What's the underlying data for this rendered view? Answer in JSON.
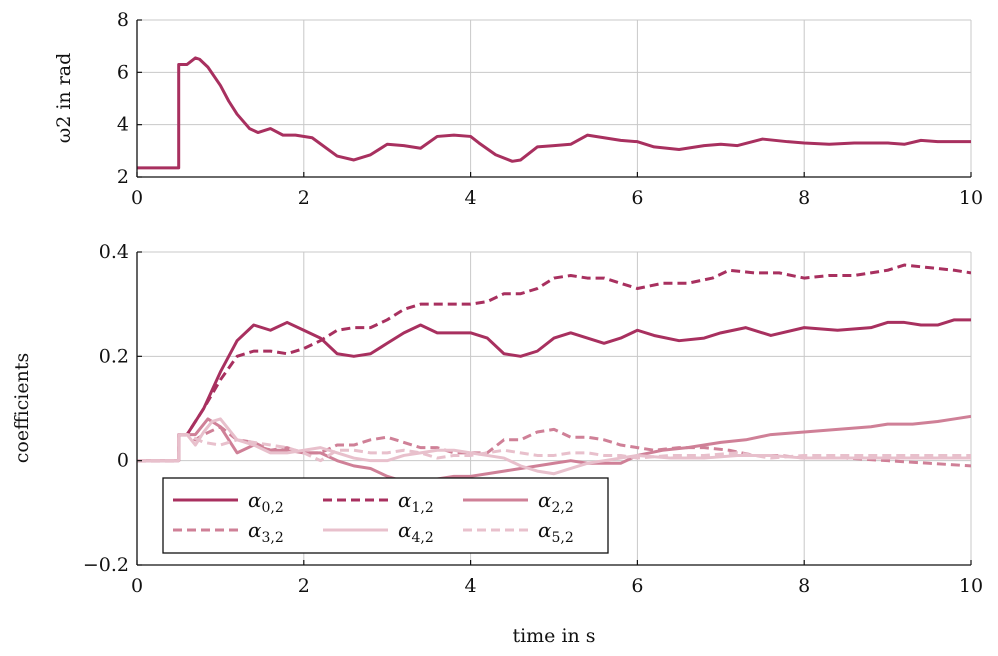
{
  "chart_data": [
    {
      "type": "line",
      "ylabel": "ω2 in rad",
      "xlabel": "",
      "xlim": [
        0,
        10
      ],
      "ylim": [
        2,
        8
      ],
      "xticks": [
        0,
        2,
        4,
        6,
        8,
        10
      ],
      "yticks": [
        2,
        4,
        6,
        8
      ],
      "xtick_labels": [
        "0",
        "2",
        "4",
        "6",
        "8",
        "10"
      ],
      "ytick_labels": [
        "2",
        "4",
        "6",
        "8"
      ],
      "grid": true,
      "legend": null,
      "series": [
        {
          "color": "#a8305f",
          "dash": "solid",
          "x": [
            0,
            0.5,
            0.5,
            0.52,
            0.6,
            0.7,
            0.75,
            0.85,
            1.0,
            1.1,
            1.2,
            1.35,
            1.45,
            1.6,
            1.75,
            1.9,
            2.1,
            2.4,
            2.6,
            2.8,
            3.0,
            3.2,
            3.4,
            3.6,
            3.8,
            4.0,
            4.1,
            4.3,
            4.5,
            4.6,
            4.8,
            5.0,
            5.2,
            5.4,
            5.6,
            5.8,
            6.0,
            6.2,
            6.5,
            6.8,
            7.0,
            7.2,
            7.5,
            7.8,
            8.0,
            8.3,
            8.6,
            9.0,
            9.2,
            9.4,
            9.6,
            9.8,
            10.0
          ],
          "y": [
            2.35,
            2.35,
            6.3,
            6.3,
            6.3,
            6.55,
            6.5,
            6.2,
            5.5,
            4.9,
            4.4,
            3.85,
            3.7,
            3.85,
            3.6,
            3.6,
            3.5,
            2.8,
            2.65,
            2.85,
            3.25,
            3.2,
            3.1,
            3.55,
            3.6,
            3.55,
            3.3,
            2.85,
            2.6,
            2.65,
            3.15,
            3.2,
            3.25,
            3.6,
            3.5,
            3.4,
            3.35,
            3.15,
            3.05,
            3.2,
            3.25,
            3.2,
            3.45,
            3.35,
            3.3,
            3.25,
            3.3,
            3.3,
            3.25,
            3.4,
            3.35,
            3.35,
            3.35
          ]
        }
      ]
    },
    {
      "type": "line",
      "ylabel": "coefficients",
      "xlabel": "time in s",
      "xlim": [
        0,
        10
      ],
      "ylim": [
        -0.2,
        0.4
      ],
      "xticks": [
        0,
        2,
        4,
        6,
        8,
        10
      ],
      "yticks": [
        -0.2,
        0,
        0.2,
        0.4
      ],
      "xtick_labels": [
        "0",
        "2",
        "4",
        "6",
        "8",
        "10"
      ],
      "ytick_labels": [
        "−0.2",
        "0",
        "0.2",
        "0.4"
      ],
      "grid": true,
      "legend": "bottom-left",
      "series": [
        {
          "name": "α0,2",
          "base": "α",
          "sub": "0,2",
          "color": "#a8305f",
          "dash": "solid",
          "x": [
            0,
            0.5,
            0.5,
            0.6,
            0.8,
            1.0,
            1.2,
            1.4,
            1.6,
            1.8,
            2.0,
            2.2,
            2.4,
            2.6,
            2.8,
            3.0,
            3.2,
            3.4,
            3.6,
            3.8,
            4.0,
            4.2,
            4.4,
            4.6,
            4.8,
            5.0,
            5.2,
            5.4,
            5.6,
            5.8,
            6.0,
            6.2,
            6.5,
            6.8,
            7.0,
            7.3,
            7.6,
            8.0,
            8.4,
            8.8,
            9.0,
            9.2,
            9.4,
            9.6,
            9.8,
            10.0
          ],
          "y": [
            0,
            0,
            0.05,
            0.05,
            0.1,
            0.17,
            0.23,
            0.26,
            0.25,
            0.265,
            0.25,
            0.235,
            0.205,
            0.2,
            0.205,
            0.225,
            0.245,
            0.26,
            0.245,
            0.245,
            0.245,
            0.235,
            0.205,
            0.2,
            0.21,
            0.235,
            0.245,
            0.235,
            0.225,
            0.235,
            0.25,
            0.24,
            0.23,
            0.235,
            0.245,
            0.255,
            0.24,
            0.255,
            0.25,
            0.255,
            0.265,
            0.265,
            0.26,
            0.26,
            0.27,
            0.27
          ]
        },
        {
          "name": "α1,2",
          "base": "α",
          "sub": "1,2",
          "color": "#a8305f",
          "dash": "dashed",
          "x": [
            0,
            0.5,
            0.5,
            0.6,
            0.8,
            1.0,
            1.2,
            1.4,
            1.6,
            1.8,
            2.0,
            2.2,
            2.4,
            2.6,
            2.8,
            3.0,
            3.2,
            3.4,
            3.6,
            3.8,
            4.0,
            4.2,
            4.4,
            4.6,
            4.8,
            5.0,
            5.2,
            5.4,
            5.6,
            5.8,
            6.0,
            6.3,
            6.6,
            6.9,
            7.1,
            7.4,
            7.7,
            8.0,
            8.3,
            8.6,
            9.0,
            9.2,
            9.5,
            9.8,
            10.0
          ],
          "y": [
            0,
            0,
            0.05,
            0.05,
            0.1,
            0.155,
            0.2,
            0.21,
            0.21,
            0.205,
            0.215,
            0.23,
            0.25,
            0.255,
            0.255,
            0.27,
            0.29,
            0.3,
            0.3,
            0.3,
            0.3,
            0.305,
            0.32,
            0.32,
            0.33,
            0.35,
            0.355,
            0.35,
            0.35,
            0.34,
            0.33,
            0.34,
            0.34,
            0.35,
            0.365,
            0.36,
            0.36,
            0.35,
            0.355,
            0.355,
            0.365,
            0.375,
            0.37,
            0.365,
            0.36
          ]
        },
        {
          "name": "α2,2",
          "base": "α",
          "sub": "2,2",
          "color": "#cf8097",
          "dash": "solid",
          "x": [
            0,
            0.5,
            0.5,
            0.6,
            0.7,
            0.85,
            1.0,
            1.1,
            1.2,
            1.4,
            1.6,
            1.8,
            2.0,
            2.2,
            2.4,
            2.6,
            2.8,
            3.0,
            3.2,
            3.4,
            3.6,
            3.8,
            4.0,
            4.2,
            4.4,
            4.6,
            4.8,
            5.0,
            5.2,
            5.4,
            5.6,
            5.8,
            6.0,
            6.3,
            6.6,
            7.0,
            7.3,
            7.6,
            8.0,
            8.4,
            8.8,
            9.0,
            9.3,
            9.6,
            9.8,
            10.0
          ],
          "y": [
            0,
            0,
            0.05,
            0.05,
            0.05,
            0.08,
            0.065,
            0.04,
            0.015,
            0.03,
            0.02,
            0.02,
            0.015,
            0.015,
            0.0,
            -0.01,
            -0.015,
            -0.03,
            -0.04,
            -0.04,
            -0.035,
            -0.03,
            -0.03,
            -0.025,
            -0.02,
            -0.015,
            -0.01,
            -0.005,
            0.0,
            -0.005,
            -0.005,
            -0.005,
            0.01,
            0.02,
            0.025,
            0.035,
            0.04,
            0.05,
            0.055,
            0.06,
            0.065,
            0.07,
            0.07,
            0.075,
            0.08,
            0.085
          ]
        },
        {
          "name": "α3,2",
          "base": "α",
          "sub": "3,2",
          "color": "#cf8097",
          "dash": "dashed",
          "x": [
            0,
            0.5,
            0.5,
            0.6,
            0.7,
            0.8,
            1.0,
            1.2,
            1.4,
            1.6,
            1.8,
            2.0,
            2.2,
            2.4,
            2.6,
            2.8,
            3.0,
            3.2,
            3.4,
            3.6,
            3.8,
            4.0,
            4.2,
            4.4,
            4.6,
            4.8,
            5.0,
            5.2,
            5.4,
            5.6,
            5.8,
            6.0,
            6.2,
            6.5,
            6.8,
            7.1,
            7.4,
            7.7,
            8.0,
            8.5,
            9.0,
            9.5,
            10.0
          ],
          "y": [
            0,
            0,
            0.05,
            0.05,
            0.04,
            0.05,
            0.065,
            0.04,
            0.035,
            0.02,
            0.025,
            0.015,
            0.015,
            0.03,
            0.03,
            0.04,
            0.045,
            0.035,
            0.025,
            0.025,
            0.015,
            0.015,
            0.015,
            0.04,
            0.04,
            0.055,
            0.06,
            0.045,
            0.045,
            0.04,
            0.03,
            0.025,
            0.02,
            0.025,
            0.025,
            0.02,
            0.01,
            0.01,
            0.005,
            0.005,
            0.0,
            -0.005,
            -0.01
          ]
        },
        {
          "name": "α4,2",
          "base": "α",
          "sub": "4,2",
          "color": "#e8c0cc",
          "dash": "solid",
          "x": [
            0,
            0.5,
            0.5,
            0.6,
            0.7,
            0.8,
            0.9,
            1.0,
            1.1,
            1.2,
            1.4,
            1.6,
            1.8,
            2.0,
            2.2,
            2.4,
            2.6,
            2.8,
            3.0,
            3.2,
            3.4,
            3.6,
            3.8,
            4.0,
            4.2,
            4.4,
            4.6,
            4.8,
            5.0,
            5.2,
            5.4,
            5.6,
            5.8,
            6.0,
            6.4,
            6.8,
            7.2,
            7.6,
            8.0,
            8.5,
            9.0,
            9.5,
            10.0
          ],
          "y": [
            0,
            0,
            0.05,
            0.05,
            0.03,
            0.055,
            0.075,
            0.08,
            0.06,
            0.04,
            0.03,
            0.015,
            0.015,
            0.02,
            0.025,
            0.015,
            0.005,
            0.0,
            0.0,
            0.01,
            0.015,
            0.02,
            0.02,
            0.015,
            0.01,
            0.005,
            -0.01,
            -0.02,
            -0.025,
            -0.015,
            -0.005,
            0.0,
            0.005,
            0.01,
            0.005,
            0.005,
            0.01,
            0.01,
            0.005,
            0.005,
            0.005,
            0.005,
            0.005
          ]
        },
        {
          "name": "α5,2",
          "base": "α",
          "sub": "5,2",
          "color": "#e8c0cc",
          "dash": "dashed",
          "x": [
            0,
            0.5,
            0.5,
            0.6,
            0.8,
            1.0,
            1.2,
            1.4,
            1.6,
            1.8,
            2.0,
            2.2,
            2.4,
            2.6,
            2.8,
            3.0,
            3.2,
            3.4,
            3.6,
            3.8,
            4.0,
            4.2,
            4.4,
            4.6,
            4.8,
            5.0,
            5.2,
            5.4,
            5.6,
            5.8,
            6.0,
            6.4,
            6.8,
            7.2,
            7.6,
            8.0,
            8.5,
            9.0,
            9.5,
            10.0
          ],
          "y": [
            0,
            0,
            0.05,
            0.05,
            0.035,
            0.03,
            0.04,
            0.035,
            0.03,
            0.025,
            0.015,
            0.0,
            0.02,
            0.02,
            0.015,
            0.015,
            0.02,
            0.015,
            0.005,
            0.01,
            0.01,
            0.015,
            0.02,
            0.015,
            0.01,
            0.01,
            0.015,
            0.015,
            0.01,
            0.01,
            0.005,
            0.01,
            0.01,
            0.015,
            0.005,
            0.01,
            0.01,
            0.01,
            0.01,
            0.01
          ]
        }
      ]
    }
  ]
}
